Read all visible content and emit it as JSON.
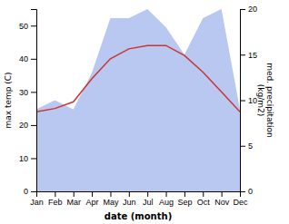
{
  "chart_data": {
    "type": "line",
    "categories": [
      "Jan",
      "Feb",
      "Mar",
      "Apr",
      "May",
      "Jun",
      "Jul",
      "Aug",
      "Sep",
      "Oct",
      "Nov",
      "Dec"
    ],
    "series": [
      {
        "type": "area",
        "axis": "y2",
        "color": "#b8c8f0",
        "values": [
          9,
          10,
          9,
          13,
          19,
          19,
          20,
          18,
          15,
          19,
          20,
          9
        ]
      },
      {
        "type": "line",
        "color": "#cc3333",
        "values": [
          24,
          25,
          27,
          34,
          40,
          43,
          44,
          44,
          41,
          36,
          30,
          24
        ]
      }
    ],
    "x_label": "date (month)",
    "y_label": "max temp (C)",
    "y2_label": "med. precipitation\n(kg/m2)",
    "ylim": [
      0,
      55
    ],
    "yticks": [
      0,
      10,
      20,
      30,
      40,
      50
    ],
    "y2lim": [
      0,
      20
    ],
    "y2ticks": [
      0,
      5,
      10,
      15,
      20
    ]
  }
}
